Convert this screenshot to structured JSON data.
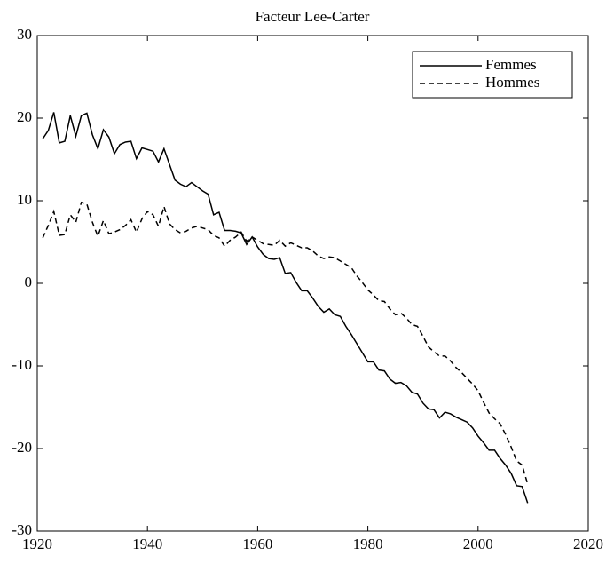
{
  "chart_data": {
    "type": "line",
    "title": "Facteur Lee-Carter",
    "x": [
      1921,
      1922,
      1923,
      1924,
      1925,
      1926,
      1927,
      1928,
      1929,
      1930,
      1931,
      1932,
      1933,
      1934,
      1935,
      1936,
      1937,
      1938,
      1939,
      1940,
      1941,
      1942,
      1943,
      1944,
      1945,
      1946,
      1947,
      1948,
      1949,
      1950,
      1951,
      1952,
      1953,
      1954,
      1955,
      1956,
      1957,
      1958,
      1959,
      1960,
      1961,
      1962,
      1963,
      1964,
      1965,
      1966,
      1967,
      1968,
      1969,
      1970,
      1971,
      1972,
      1973,
      1974,
      1975,
      1976,
      1977,
      1978,
      1979,
      1980,
      1981,
      1982,
      1983,
      1984,
      1985,
      1986,
      1987,
      1988,
      1989,
      1990,
      1991,
      1992,
      1993,
      1994,
      1995,
      1996,
      1997,
      1998,
      1999,
      2000,
      2001,
      2002,
      2003,
      2004,
      2005,
      2006,
      2007,
      2008,
      2009
    ],
    "series": [
      {
        "name": "Femmes",
        "color": "#000000",
        "linestyle": "solid",
        "values": [
          17.5,
          18.5,
          20.7,
          17,
          17.2,
          20.3,
          17.8,
          20.3,
          20.6,
          18,
          16.3,
          18.6,
          17.7,
          15.7,
          16.8,
          17.1,
          17.2,
          15.1,
          16.4,
          16.2,
          16,
          14.7,
          16.3,
          14.4,
          12.5,
          12,
          11.7,
          12.2,
          11.7,
          11.2,
          10.8,
          8.3,
          8.6,
          6.4,
          6.4,
          6.3,
          6.1,
          4.7,
          5.6,
          4.4,
          3.5,
          3,
          2.9,
          3.1,
          1.2,
          1.3,
          0.1,
          -0.9,
          -0.9,
          -1.8,
          -2.8,
          -3.5,
          -3.1,
          -3.8,
          -4,
          -5.2,
          -6.2,
          -7.3,
          -8.4,
          -9.5,
          -9.5,
          -10.5,
          -10.6,
          -11.6,
          -12.1,
          -12,
          -12.4,
          -13.2,
          -13.4,
          -14.5,
          -15.2,
          -15.3,
          -16.3,
          -15.6,
          -15.8,
          -16.2,
          -16.5,
          -16.8,
          -17.5,
          -18.5,
          -19.3,
          -20.2,
          -20.2,
          -21.2,
          -22,
          -23,
          -24.5,
          -24.6,
          -26.6
        ]
      },
      {
        "name": "Hommes",
        "color": "#000000",
        "linestyle": "dashed",
        "values": [
          5.5,
          7,
          8.7,
          5.8,
          5.9,
          8.3,
          7.4,
          9.8,
          9.6,
          7.4,
          5.7,
          7.6,
          6,
          6.2,
          6.5,
          7,
          7.7,
          6.2,
          7.8,
          8.7,
          8.3,
          6.9,
          9.3,
          7.2,
          6.5,
          6.1,
          6.3,
          6.7,
          6.9,
          6.7,
          6.5,
          5.8,
          5.5,
          4.5,
          5.2,
          5.6,
          6.2,
          5.1,
          5.6,
          5.2,
          4.8,
          4.7,
          4.6,
          5.2,
          4.5,
          4.9,
          4.6,
          4.3,
          4.3,
          3.9,
          3.3,
          3,
          3.2,
          3.1,
          2.7,
          2.3,
          1.9,
          0.9,
          0.1,
          -0.8,
          -1.4,
          -2.1,
          -2.2,
          -3.1,
          -3.8,
          -3.6,
          -4.2,
          -5,
          -5.2,
          -6.4,
          -7.7,
          -8.3,
          -8.8,
          -8.8,
          -9.4,
          -10.2,
          -10.8,
          -11.5,
          -12.2,
          -13,
          -14.4,
          -15.7,
          -16.4,
          -17,
          -18.3,
          -19.8,
          -21.5,
          -22,
          -24.3
        ]
      }
    ],
    "xlim": [
      1920,
      2020
    ],
    "xticks": [
      1920,
      1940,
      1960,
      1980,
      2000,
      2020
    ],
    "ylim": [
      -30,
      30
    ],
    "yticks": [
      -30,
      -20,
      -10,
      0,
      10,
      20,
      30
    ],
    "legend": "upper right"
  }
}
